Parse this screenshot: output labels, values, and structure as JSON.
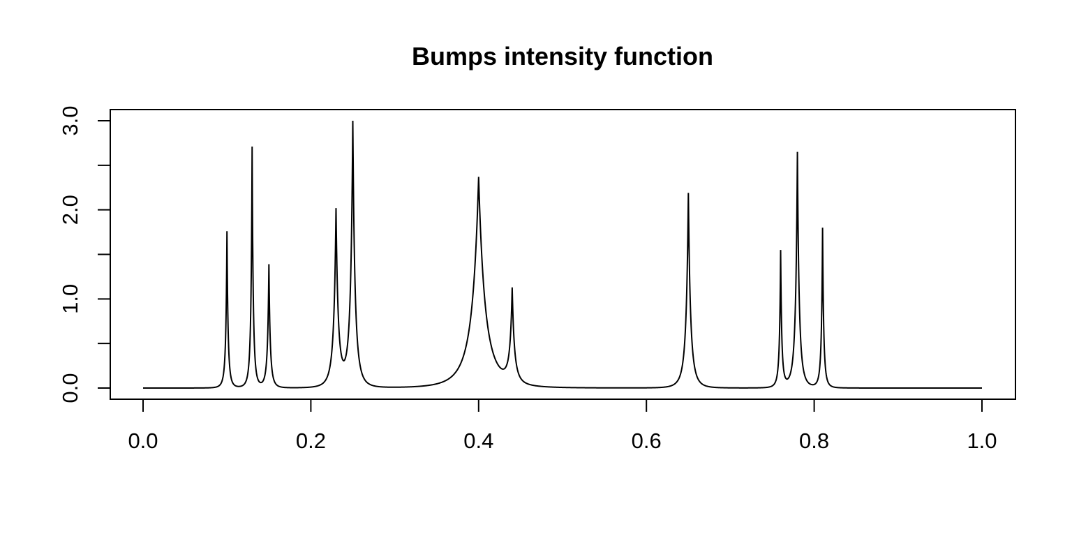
{
  "chart_data": {
    "type": "line",
    "title": "Bumps intensity function",
    "xlabel": "",
    "ylabel": "",
    "xlim": [
      0.0,
      1.0
    ],
    "ylim": [
      0.0,
      3.0
    ],
    "x_ticks": [
      0.0,
      0.2,
      0.4,
      0.6,
      0.8,
      1.0
    ],
    "x_tick_labels": [
      "0.0",
      "0.2",
      "0.4",
      "0.6",
      "0.8",
      "1.0"
    ],
    "y_ticks": [
      0.0,
      0.5,
      1.0,
      1.5,
      2.0,
      2.5,
      3.0
    ],
    "y_tick_labels": [
      "0.0",
      "",
      "1.0",
      "",
      "2.0",
      "",
      "3.0"
    ],
    "grid": false,
    "line_color": "#000000",
    "series": [
      {
        "peaks": [
          {
            "x": 0.1,
            "y": 1.76
          },
          {
            "x": 0.13,
            "y": 2.71
          },
          {
            "x": 0.15,
            "y": 1.39
          },
          {
            "x": 0.23,
            "y": 2.02
          },
          {
            "x": 0.25,
            "y": 3.0
          },
          {
            "x": 0.4,
            "y": 2.37
          },
          {
            "x": 0.44,
            "y": 1.13
          },
          {
            "x": 0.65,
            "y": 2.19
          },
          {
            "x": 0.76,
            "y": 1.55
          },
          {
            "x": 0.78,
            "y": 2.65
          },
          {
            "x": 0.81,
            "y": 1.8
          }
        ]
      }
    ]
  }
}
